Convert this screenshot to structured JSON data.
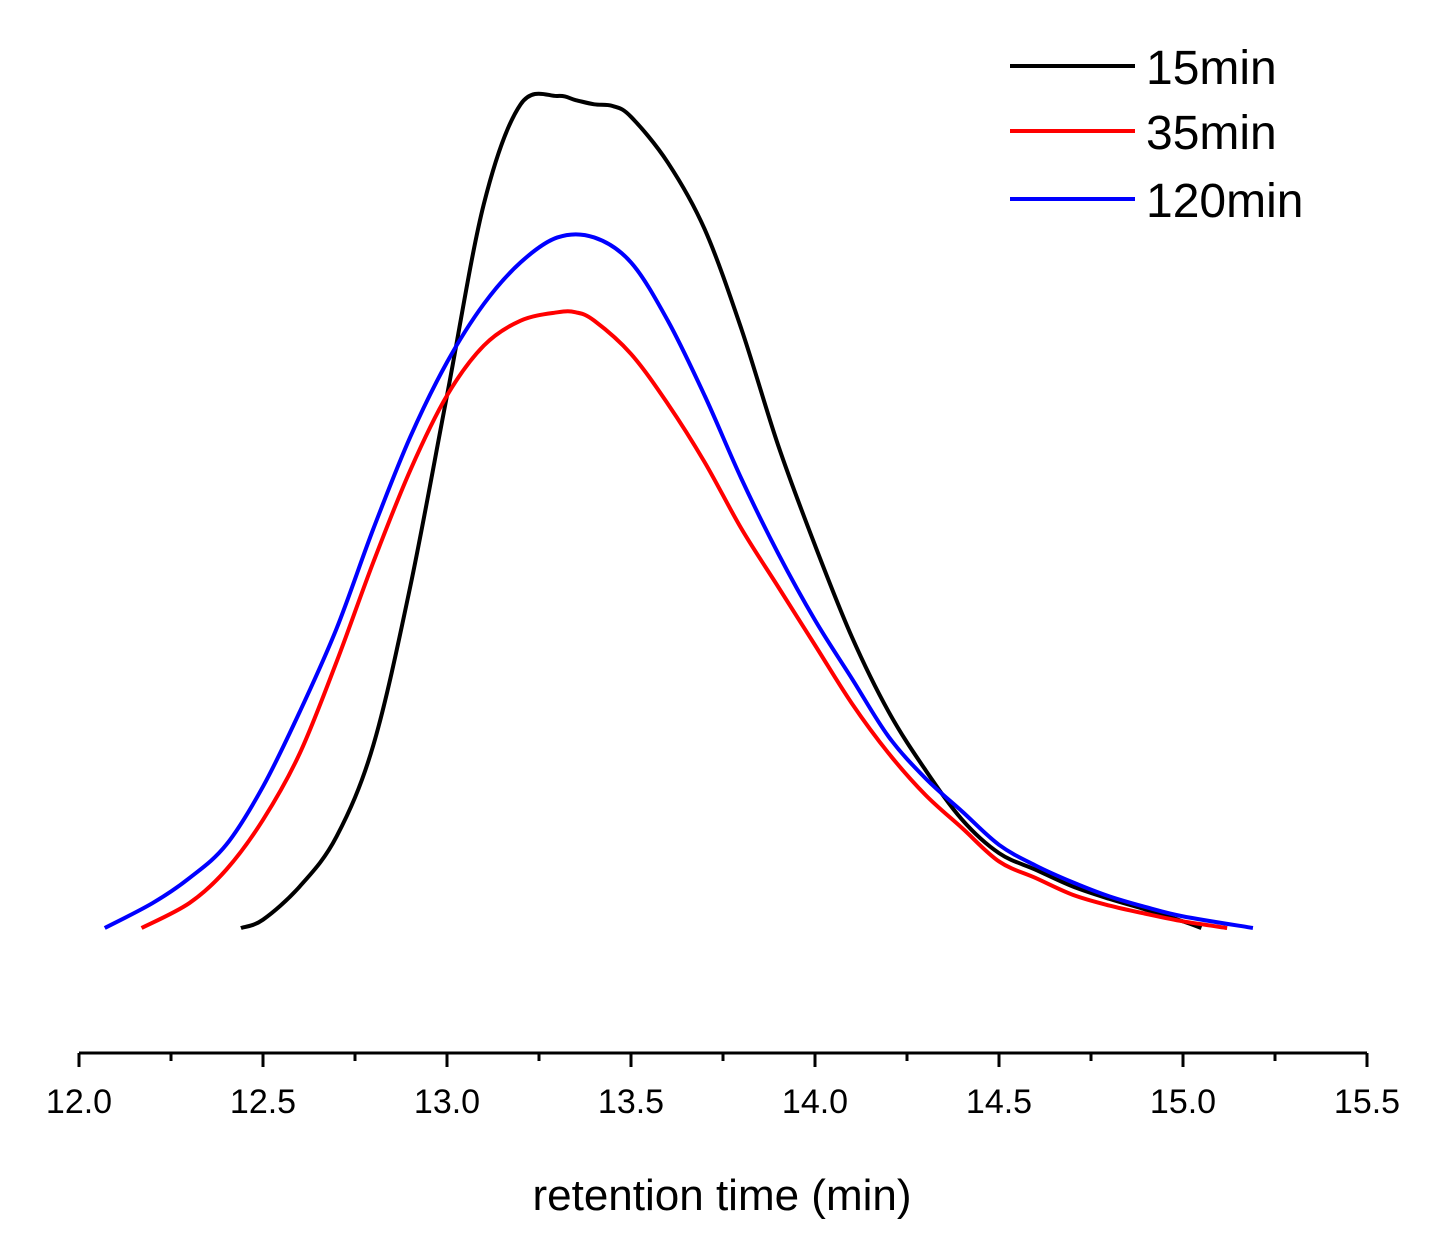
{
  "chart_data": {
    "type": "line",
    "title": "",
    "xlabel": "retention time (min)",
    "ylabel": "",
    "xlim": [
      12.0,
      15.5
    ],
    "ylim": [
      0,
      1.05
    ],
    "x_ticks": [
      "12.0",
      "12.5",
      "13.0",
      "13.5",
      "14.0",
      "14.5",
      "15.0",
      "15.5"
    ],
    "y_axis_visible": false,
    "grid": false,
    "legend_position": "top-right",
    "series": [
      {
        "name": "15min",
        "color": "#000000",
        "x": [
          12.44,
          12.5,
          12.6,
          12.7,
          12.8,
          12.9,
          13.0,
          13.1,
          13.2,
          13.3,
          13.35,
          13.4,
          13.45,
          13.5,
          13.6,
          13.7,
          13.8,
          13.9,
          14.0,
          14.1,
          14.2,
          14.3,
          14.4,
          14.5,
          14.6,
          14.7,
          14.8,
          14.9,
          15.0,
          15.05
        ],
        "values": [
          0.0,
          0.01,
          0.05,
          0.11,
          0.22,
          0.41,
          0.64,
          0.87,
          0.99,
          1.0,
          0.995,
          0.99,
          0.988,
          0.975,
          0.92,
          0.84,
          0.72,
          0.58,
          0.46,
          0.35,
          0.26,
          0.19,
          0.13,
          0.09,
          0.07,
          0.05,
          0.035,
          0.022,
          0.008,
          0.0
        ]
      },
      {
        "name": "35min",
        "color": "#ff0000",
        "x": [
          12.17,
          12.3,
          12.4,
          12.5,
          12.6,
          12.7,
          12.8,
          12.9,
          13.0,
          13.1,
          13.2,
          13.3,
          13.35,
          13.4,
          13.5,
          13.6,
          13.7,
          13.8,
          13.9,
          14.0,
          14.1,
          14.2,
          14.3,
          14.4,
          14.5,
          14.6,
          14.7,
          14.8,
          14.9,
          15.0,
          15.12
        ],
        "values": [
          0.0,
          0.03,
          0.07,
          0.13,
          0.21,
          0.32,
          0.44,
          0.55,
          0.64,
          0.7,
          0.73,
          0.74,
          0.74,
          0.73,
          0.69,
          0.63,
          0.56,
          0.48,
          0.41,
          0.34,
          0.27,
          0.21,
          0.16,
          0.12,
          0.08,
          0.06,
          0.04,
          0.027,
          0.017,
          0.008,
          0.0
        ]
      },
      {
        "name": "120min",
        "color": "#0000ff",
        "x": [
          12.07,
          12.2,
          12.3,
          12.4,
          12.5,
          12.6,
          12.7,
          12.8,
          12.9,
          13.0,
          13.1,
          13.2,
          13.3,
          13.4,
          13.5,
          13.6,
          13.7,
          13.8,
          13.9,
          14.0,
          14.1,
          14.2,
          14.3,
          14.4,
          14.5,
          14.6,
          14.7,
          14.8,
          14.9,
          15.0,
          15.19
        ],
        "values": [
          0.0,
          0.03,
          0.06,
          0.1,
          0.17,
          0.26,
          0.36,
          0.48,
          0.59,
          0.68,
          0.75,
          0.8,
          0.83,
          0.83,
          0.8,
          0.73,
          0.64,
          0.54,
          0.45,
          0.37,
          0.3,
          0.23,
          0.18,
          0.14,
          0.1,
          0.075,
          0.055,
          0.038,
          0.025,
          0.014,
          0.0
        ]
      }
    ]
  }
}
